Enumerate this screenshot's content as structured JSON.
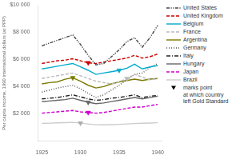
{
  "chart_data": {
    "type": "line",
    "y_label": "Per capita income, 1990 international dollars (at PPP)",
    "x": [
      1925,
      1926,
      1927,
      1928,
      1929,
      1930,
      1931,
      1932,
      1933,
      1934,
      1935,
      1936,
      1937,
      1938,
      1939,
      1940
    ],
    "series": [
      {
        "name": "United States",
        "color": "#444444",
        "line_style": "dashdotdot",
        "values": [
          7000,
          7200,
          7400,
          7600,
          7800,
          7100,
          6300,
          5600,
          5700,
          6200,
          6700,
          7300,
          7600,
          6900,
          7600,
          8500
        ]
      },
      {
        "name": "United Kingdom",
        "color": "#cc0000",
        "line_style": "dashed",
        "values": [
          5700,
          5800,
          5900,
          5950,
          6050,
          5900,
          5750,
          5700,
          5800,
          5900,
          6000,
          6100,
          6300,
          6100,
          6200,
          6400
        ]
      },
      {
        "name": "Belgium",
        "color": "#00aacc",
        "line_style": "solid",
        "values": [
          5300,
          5400,
          5500,
          5600,
          5700,
          5450,
          5200,
          4900,
          5000,
          5100,
          5200,
          5350,
          5650,
          5300,
          5450,
          5550
        ]
      },
      {
        "name": "France",
        "color": "#bbbbbb",
        "line_style": "dashed",
        "values": [
          4600,
          4700,
          4800,
          4900,
          5000,
          4800,
          4600,
          4400,
          4300,
          4200,
          4350,
          4600,
          4900,
          4700,
          4500,
          4600
        ]
      },
      {
        "name": "Argentina",
        "color": "#7a7a00",
        "line_style": "solid",
        "values": [
          4200,
          4300,
          4350,
          4550,
          4650,
          4400,
          4100,
          3900,
          4000,
          4200,
          4350,
          4450,
          4550,
          4450,
          4550,
          4600
        ]
      },
      {
        "name": "Germany",
        "color": "#555555",
        "line_style": "dotted",
        "values": [
          3600,
          3750,
          3900,
          4000,
          4100,
          3850,
          3500,
          3200,
          3400,
          3750,
          4100,
          4500,
          4900,
          5000,
          5400,
          5700
        ]
      },
      {
        "name": "Italy",
        "color": "#222222",
        "line_style": "dashdot",
        "values": [
          3100,
          3150,
          3200,
          3300,
          3400,
          3250,
          3100,
          3000,
          3050,
          3150,
          3200,
          3300,
          3400,
          3200,
          3300,
          3350
        ]
      },
      {
        "name": "Hungary",
        "color": "#666666",
        "line_style": "solid",
        "values": [
          2900,
          2950,
          3000,
          3050,
          3150,
          3000,
          2850,
          2750,
          2800,
          2900,
          3000,
          3100,
          3200,
          3100,
          3200,
          3300
        ]
      },
      {
        "name": "Japan",
        "color": "#cc00cc",
        "line_style": "dashed",
        "values": [
          2050,
          2100,
          2150,
          2200,
          2250,
          2150,
          2100,
          2050,
          2100,
          2200,
          2300,
          2400,
          2500,
          2500,
          2600,
          2700
        ]
      },
      {
        "name": "Brazil",
        "color": "#cccccc",
        "line_style": "solid",
        "values": [
          1300,
          1320,
          1340,
          1360,
          1380,
          1320,
          1260,
          1200,
          1190,
          1210,
          1230,
          1260,
          1290,
          1310,
          1330,
          1350
        ]
      },
      {
        "name": "marks point\nat which country\nleft Gold Standard",
        "type": "scatter",
        "marker": "triangle_down",
        "color": "#000000",
        "x": [
          1931,
          1935,
          1936,
          1929,
          1931,
          1931,
          1930
        ],
        "values": [
          5750,
          5200,
          4600,
          4650,
          2850,
          2100,
          1320
        ],
        "colors": [
          "#cc0000",
          "#00aacc",
          "#bbbbbb",
          "#7a7a00",
          "#666666",
          "#cc00cc",
          "#aaaaaa"
        ]
      }
    ],
    "xlim": [
      1924.5,
      1940.5
    ],
    "xticks": [
      1925,
      1930,
      1935,
      1940
    ],
    "ylim": [
      0,
      10000
    ],
    "yticks": [
      {
        "value": 2000,
        "label": "$2 000"
      },
      {
        "value": 4000,
        "label": "$4 000"
      },
      {
        "value": 6000,
        "label": "$6 000"
      },
      {
        "value": 8000,
        "label": "$8 000"
      },
      {
        "value": 10000,
        "label": "$10 000"
      }
    ],
    "grid": false,
    "legend": "right"
  }
}
